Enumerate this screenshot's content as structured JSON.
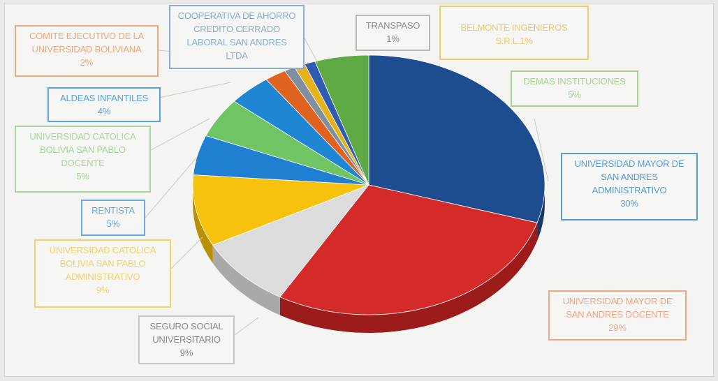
{
  "chart_data": {
    "type": "pie",
    "title": "",
    "slices": [
      {
        "label": "UNIVERSIDAD MAYOR DE SAN ANDRES ADMINISTRATIVO",
        "value_label": "30%",
        "value": 30,
        "color": "#1d4c8f",
        "side": "#143766",
        "border": "#5b9bd5"
      },
      {
        "label": "UNIVERSIDAD MAYOR DE SAN ANDRES DOCENTE",
        "value_label": "29%",
        "value": 29,
        "color": "#d42a2a",
        "side": "#9c1b1b",
        "border": "#f4a582"
      },
      {
        "label": "SEGURO SOCIAL UNIVERSITARIO",
        "value_label": "9%",
        "value": 9,
        "color": "#dcdcdc",
        "side": "#a9a9a9",
        "border": "#c8c8c8"
      },
      {
        "label": "UNIVERSIDAD CATOLICA BOLIVIA SAN PABLO ADMINISTRATIVO",
        "value_label": "9%",
        "value": 9,
        "color": "#f7c20d",
        "side": "#b98f05",
        "border": "#f2d36b"
      },
      {
        "label": "RENTISTA",
        "value_label": "5%",
        "value": 5,
        "color": "#1f7fd1",
        "side": "#155a94",
        "border": "#6aa9de"
      },
      {
        "label": "UNIVERSIDAD CATOLICA BOLIVIA SAN PABLO DOCENTE",
        "value_label": "5%",
        "value": 5,
        "color": "#6fc463",
        "side": "#4e8d46",
        "border": "#a8d69e"
      },
      {
        "label": "ALDEAS INFANTILES",
        "value_label": "4%",
        "value": 4,
        "color": "#1e86d3",
        "side": "#155f96",
        "border": "#5aa2e0"
      },
      {
        "label": "COMITE EJECUTIVO DE LA UNIVERSIDAD BOLIVIANA",
        "value_label": "2%",
        "value": 2,
        "color": "#e0621f",
        "side": "#a34413",
        "border": "#f0a77b"
      },
      {
        "label": "COOPERATIVA DE AHORRO CREDITO CERRADO LABORAL SAN ANDRES LTDA",
        "value_label": "",
        "value": 1,
        "color": "#7f8f9f",
        "side": "#5a6674",
        "border": "#8aaed1"
      },
      {
        "label": "BELMONTE INGENIEROS S.R.L.",
        "value_label": "1%",
        "value": 1,
        "color": "#e4b21b",
        "side": "#a78211",
        "border": "#f0c96b"
      },
      {
        "label": "TRANSPASO",
        "value_label": "1%",
        "value": 1,
        "color": "#2f5bb0",
        "side": "#20407d",
        "border": "#b6b6b6"
      },
      {
        "label": "DEMAS INSTITUCIONES",
        "value_label": "5%",
        "value": 5,
        "color": "#5faa45",
        "side": "#437a31",
        "border": "#a9cf94"
      }
    ]
  }
}
